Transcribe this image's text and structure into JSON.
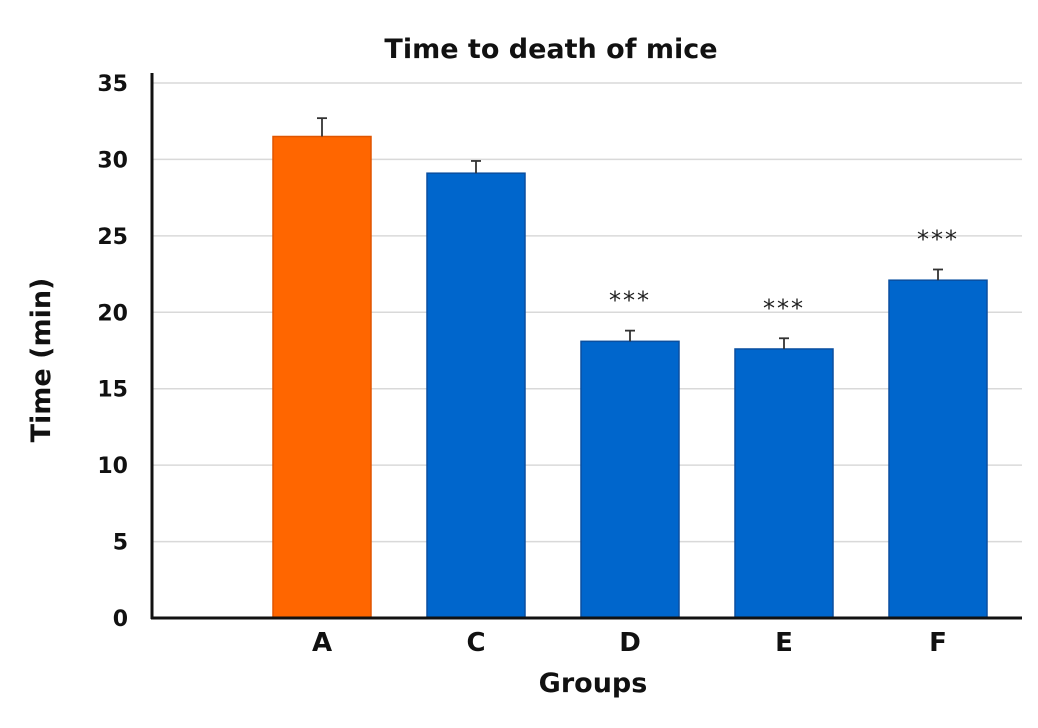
{
  "chart_data": {
    "type": "bar",
    "title": "Time to death of mice",
    "xlabel": "Groups",
    "ylabel": "Time (min)",
    "categories": [
      "A",
      "C",
      "D",
      "E",
      "F"
    ],
    "values": [
      31.5,
      29.1,
      18.1,
      17.6,
      22.1
    ],
    "error": [
      1.2,
      0.8,
      0.7,
      0.7,
      0.7
    ],
    "significance": [
      "",
      "",
      "***",
      "***",
      "***"
    ],
    "bar_colors": [
      "#ff6600",
      "#0066cc",
      "#0066cc",
      "#0066cc",
      "#0066cc"
    ],
    "ylim": [
      0,
      35
    ],
    "yticks": [
      0,
      5,
      10,
      15,
      20,
      25,
      30,
      35
    ],
    "grid": true,
    "legend": "none"
  }
}
